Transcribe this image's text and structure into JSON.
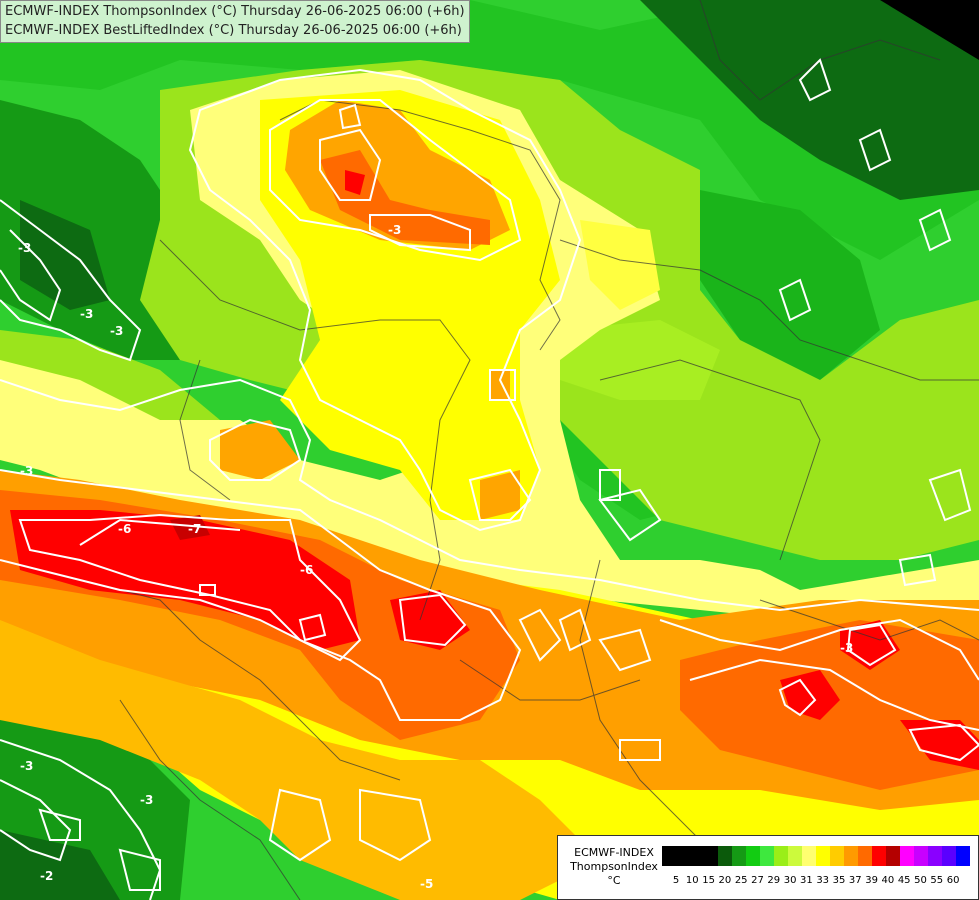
{
  "title": {
    "line1": "ECMWF-INDEX ThompsonIndex (°C) Thursday 26-06-2025 06:00 (+6h)",
    "line2": "ECMWF-INDEX BestLiftedIndex (°C) Thursday 26-06-2025 06:00 (+6h)"
  },
  "legend": {
    "line1": "ECMWF-INDEX",
    "line2": "ThompsonIndex",
    "unit": "°C",
    "colors": [
      "#000000",
      "#000000",
      "#000000",
      "#000000",
      "#0b5a0b",
      "#159a15",
      "#12cc12",
      "#3ee83e",
      "#9aee18",
      "#ccfa3c",
      "#ffff70",
      "#ffff00",
      "#ffcc00",
      "#ff9a00",
      "#ff6a00",
      "#ff0000",
      "#b40000",
      "#ff00ff",
      "#c800ff",
      "#8a00ff",
      "#5a00ff",
      "#0000ff"
    ],
    "ticks": [
      "5",
      "10",
      "15",
      "20",
      "25",
      "27",
      "29",
      "30",
      "31",
      "33",
      "35",
      "37",
      "39",
      "40",
      "45",
      "50",
      "55",
      "60"
    ]
  },
  "contour_labels": [
    "-3",
    "-3",
    "-6",
    "-7",
    "-6",
    "-3",
    "-3",
    "-3",
    "-2",
    "-3",
    "-5",
    "-3",
    "-3"
  ]
}
